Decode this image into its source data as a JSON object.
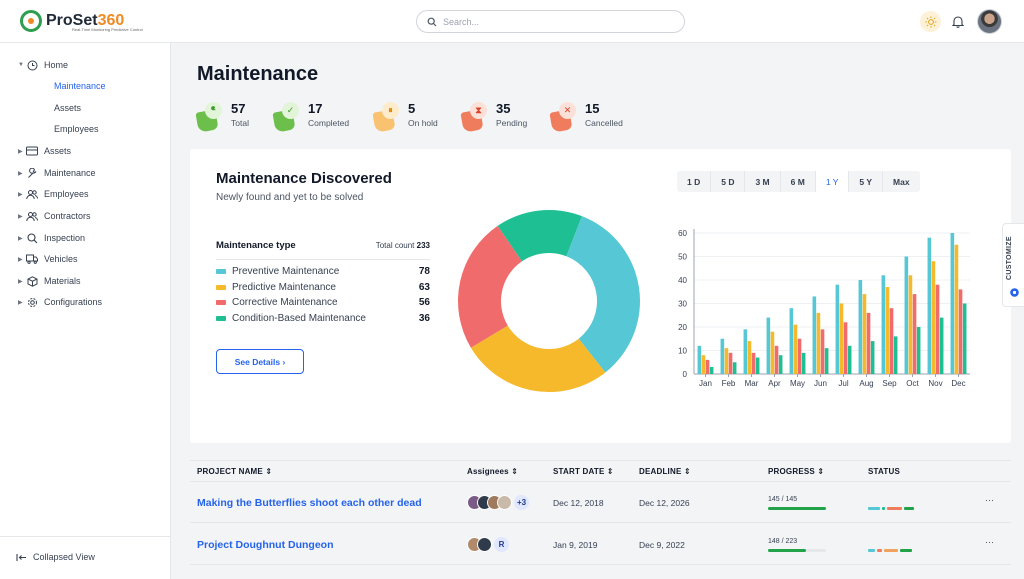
{
  "app": {
    "logo_main": "ProSet",
    "logo_num": "360",
    "logo_tag": "Real-Time Monitoring Predictive Control"
  },
  "search": {
    "placeholder": "Search..."
  },
  "sidebar": {
    "items": [
      {
        "label": "Home",
        "icon": "clock-icon"
      },
      {
        "label": "Maintenance",
        "sub": true,
        "active": true
      },
      {
        "label": "Assets",
        "sub": true
      },
      {
        "label": "Employees",
        "sub": true
      },
      {
        "label": "Assets",
        "icon": "card-icon"
      },
      {
        "label": "Maintenance",
        "icon": "wrench-icon"
      },
      {
        "label": "Employees",
        "icon": "users-icon"
      },
      {
        "label": "Contractors",
        "icon": "contractors-icon"
      },
      {
        "label": "Inspection",
        "icon": "search-icon"
      },
      {
        "label": "Vehicles",
        "icon": "truck-icon"
      },
      {
        "label": "Materials",
        "icon": "box-icon"
      },
      {
        "label": "Configurations",
        "icon": "gear-icon"
      }
    ],
    "collapse_label": "Collapsed View"
  },
  "page": {
    "title": "Maintenance"
  },
  "stats": [
    {
      "value": "57",
      "label": "Total",
      "color": "#6dbf4b",
      "icon": "wrench-icon"
    },
    {
      "value": "17",
      "label": "Completed",
      "color": "#6dbf4b",
      "icon": "check-icon"
    },
    {
      "value": "5",
      "label": "On hold",
      "color": "#f9c270",
      "icon": "pause-icon"
    },
    {
      "value": "35",
      "label": "Pending",
      "color": "#f07c5e",
      "icon": "hourglass-icon"
    },
    {
      "value": "15",
      "label": "Cancelled",
      "color": "#f07c5e",
      "icon": "x-icon"
    }
  ],
  "card": {
    "title": "Maintenance Discovered",
    "subtitle": "Newly found and yet to be solved",
    "legend_title": "Maintenance type",
    "total_label": "Total count",
    "total_value": "233",
    "see_details": "See Details",
    "customize": "CUSTOMIZE",
    "range_tabs": [
      "1 D",
      "5 D",
      "3 M",
      "6 M",
      "1 Y",
      "5 Y",
      "Max"
    ],
    "range_active": "1 Y"
  },
  "chart_data": [
    {
      "type": "pie",
      "categories": [
        "Preventive Maintenance",
        "Predictive Maintenance",
        "Corrective Maintenance",
        "Condition-Based Maintenance"
      ],
      "values": [
        78,
        63,
        56,
        36
      ],
      "colors": [
        "#55c7d5",
        "#f6b92b",
        "#f06b6b",
        "#1fbf94"
      ]
    },
    {
      "type": "bar",
      "categories": [
        "Jan",
        "Feb",
        "Mar",
        "Apr",
        "May",
        "Jun",
        "Jul",
        "Aug",
        "Sep",
        "Oct",
        "Nov",
        "Dec"
      ],
      "series": [
        {
          "values": [
            12,
            15,
            19,
            24,
            28,
            33,
            38,
            40,
            42,
            50,
            58,
            60
          ],
          "color": "#55c7d5"
        },
        {
          "values": [
            8,
            11,
            14,
            18,
            21,
            26,
            30,
            34,
            37,
            42,
            48,
            55
          ],
          "color": "#f6b92b"
        },
        {
          "values": [
            6,
            9,
            9,
            12,
            15,
            19,
            22,
            26,
            28,
            34,
            38,
            36
          ],
          "color": "#f06b6b"
        },
        {
          "values": [
            3,
            5,
            7,
            8,
            9,
            11,
            12,
            14,
            16,
            20,
            24,
            30
          ],
          "color": "#1fbf94"
        }
      ],
      "ylim": [
        0,
        60
      ],
      "yticks": [
        0,
        10,
        20,
        30,
        40,
        50,
        60
      ]
    }
  ],
  "table": {
    "headers": [
      "PROJECT NAME",
      "Assignees",
      "START DATE",
      "DEADLINE",
      "PROGRESS",
      "STATUS"
    ],
    "rows": [
      {
        "name": "Making the Butterflies shoot each other dead",
        "assignees_extra": "+3",
        "start": "Dec 12, 2018",
        "deadline": "Dec 12, 2026",
        "progress_text": "145 / 145",
        "progress": 1.0
      },
      {
        "name": "Project Doughnut Dungeon",
        "assignees_extra": "R",
        "start": "Jan 9, 2019",
        "deadline": "Dec 9, 2022",
        "progress_text": "148 / 223",
        "progress": 0.66
      }
    ],
    "more": "···"
  }
}
